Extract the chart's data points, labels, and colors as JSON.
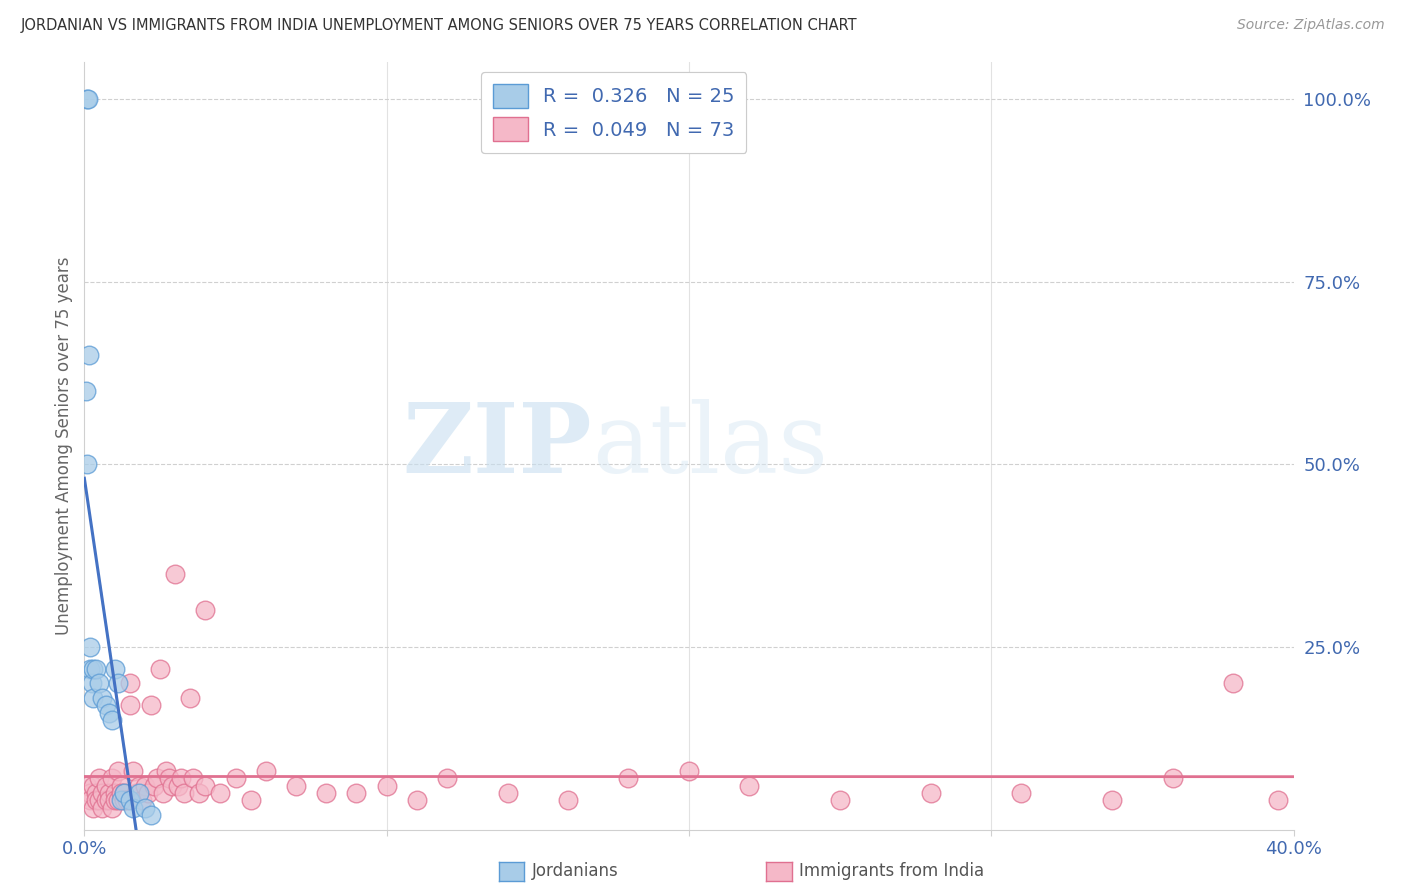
{
  "title": "JORDANIAN VS IMMIGRANTS FROM INDIA UNEMPLOYMENT AMONG SENIORS OVER 75 YEARS CORRELATION CHART",
  "source": "Source: ZipAtlas.com",
  "ylabel": "Unemployment Among Seniors over 75 years",
  "legend_label1": "Jordanians",
  "legend_label2": "Immigrants from India",
  "watermark_zip": "ZIP",
  "watermark_atlas": "atlas",
  "color_blue_fill": "#a8cce8",
  "color_blue_edge": "#5b9bd5",
  "color_blue_line": "#4472c4",
  "color_pink_fill": "#f5b8c8",
  "color_pink_edge": "#e07090",
  "color_pink_line": "#e07090",
  "color_dash": "#b0b0b0",
  "color_axis_label": "#4169b0",
  "color_grid": "#d0d0d0",
  "xlim": [
    0.0,
    0.4
  ],
  "ylim": [
    0.0,
    1.05
  ],
  "r_jordan": "0.326",
  "n_jordan": "25",
  "r_india": "0.049",
  "n_india": "73",
  "jordanian_x": [
    0.0005,
    0.0008,
    0.001,
    0.0012,
    0.0015,
    0.002,
    0.002,
    0.0025,
    0.003,
    0.003,
    0.004,
    0.005,
    0.006,
    0.007,
    0.008,
    0.009,
    0.01,
    0.011,
    0.012,
    0.013,
    0.015,
    0.016,
    0.018,
    0.02,
    0.022
  ],
  "jordanian_y": [
    0.6,
    0.5,
    1.0,
    1.0,
    0.65,
    0.25,
    0.22,
    0.2,
    0.22,
    0.18,
    0.22,
    0.2,
    0.18,
    0.17,
    0.16,
    0.15,
    0.22,
    0.2,
    0.04,
    0.05,
    0.04,
    0.03,
    0.05,
    0.03,
    0.02
  ],
  "india_x": [
    0.001,
    0.002,
    0.002,
    0.003,
    0.003,
    0.004,
    0.004,
    0.005,
    0.005,
    0.006,
    0.006,
    0.007,
    0.007,
    0.008,
    0.008,
    0.009,
    0.009,
    0.01,
    0.01,
    0.011,
    0.011,
    0.012,
    0.012,
    0.013,
    0.013,
    0.014,
    0.015,
    0.015,
    0.016,
    0.017,
    0.018,
    0.019,
    0.02,
    0.021,
    0.022,
    0.023,
    0.024,
    0.025,
    0.026,
    0.027,
    0.028,
    0.029,
    0.03,
    0.031,
    0.032,
    0.033,
    0.035,
    0.036,
    0.038,
    0.04,
    0.05,
    0.06,
    0.07,
    0.08,
    0.09,
    0.1,
    0.11,
    0.12,
    0.14,
    0.16,
    0.18,
    0.2,
    0.22,
    0.25,
    0.28,
    0.31,
    0.34,
    0.36,
    0.38,
    0.395,
    0.04,
    0.045,
    0.055
  ],
  "india_y": [
    0.06,
    0.05,
    0.04,
    0.06,
    0.03,
    0.05,
    0.04,
    0.07,
    0.04,
    0.05,
    0.03,
    0.06,
    0.04,
    0.05,
    0.04,
    0.07,
    0.03,
    0.05,
    0.04,
    0.08,
    0.04,
    0.06,
    0.05,
    0.05,
    0.04,
    0.04,
    0.2,
    0.17,
    0.08,
    0.05,
    0.06,
    0.04,
    0.06,
    0.05,
    0.17,
    0.06,
    0.07,
    0.22,
    0.05,
    0.08,
    0.07,
    0.06,
    0.35,
    0.06,
    0.07,
    0.05,
    0.18,
    0.07,
    0.05,
    0.06,
    0.07,
    0.08,
    0.06,
    0.05,
    0.05,
    0.06,
    0.04,
    0.07,
    0.05,
    0.04,
    0.07,
    0.08,
    0.06,
    0.04,
    0.05,
    0.05,
    0.04,
    0.07,
    0.2,
    0.04,
    0.3,
    0.05,
    0.04
  ]
}
